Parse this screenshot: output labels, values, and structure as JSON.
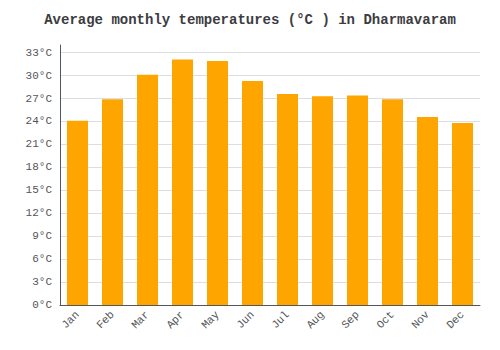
{
  "chart_data": {
    "type": "bar",
    "title": "Average monthly temperatures (°C ) in Dharmavaram",
    "categories": [
      "Jan",
      "Feb",
      "Mar",
      "Apr",
      "May",
      "Jun",
      "Jul",
      "Aug",
      "Sep",
      "Oct",
      "Nov",
      "Dec"
    ],
    "values": [
      24.1,
      26.9,
      30.1,
      32.1,
      31.9,
      29.3,
      27.6,
      27.3,
      27.4,
      26.9,
      24.6,
      23.8
    ],
    "color": "#FFA500",
    "ylim": [
      0,
      34
    ],
    "yticks": [
      {
        "value": 0,
        "label": "0°C"
      },
      {
        "value": 3,
        "label": "3°C"
      },
      {
        "value": 6,
        "label": "6°C"
      },
      {
        "value": 9,
        "label": "9°C"
      },
      {
        "value": 12,
        "label": "12°C"
      },
      {
        "value": 15,
        "label": "15°C"
      },
      {
        "value": 18,
        "label": "18°C"
      },
      {
        "value": 21,
        "label": "21°C"
      },
      {
        "value": 24,
        "label": "24°C"
      },
      {
        "value": 27,
        "label": "27°C"
      },
      {
        "value": 30,
        "label": "30°C"
      },
      {
        "value": 33,
        "label": "33°C"
      }
    ],
    "grid": true
  }
}
